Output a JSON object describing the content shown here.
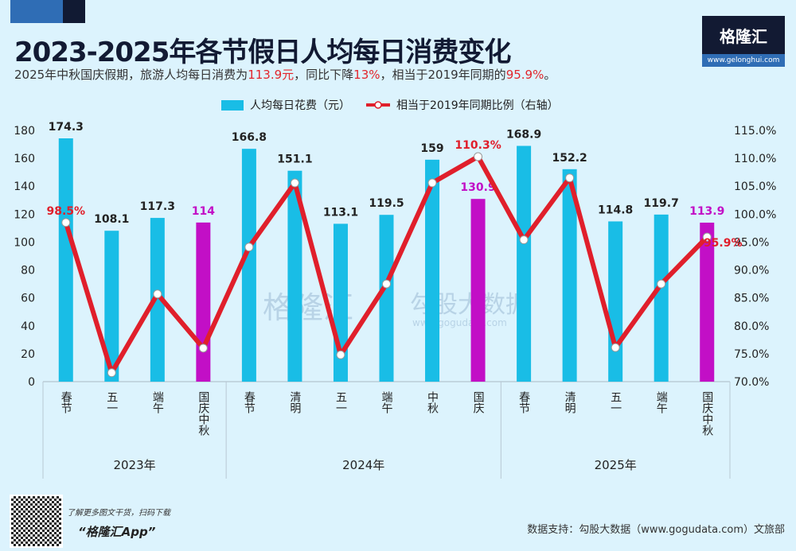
{
  "title": "2023-2025年各节假日人均每日消费变化",
  "subtitle": {
    "p1": "2025年中秋国庆假期，旅游人均每日消费为",
    "v1": "113.9元",
    "p2": "，同比下降",
    "v2": "13%",
    "p3": "，相当于2019年同期的",
    "v3": "95.9%",
    "p4": "。"
  },
  "logo": {
    "name": "格隆汇",
    "url": "www.gelonghui.com"
  },
  "watermark": {
    "a": "格隆汇",
    "b": "勾股大数据",
    "c": "www.gogudata.com"
  },
  "footer": {
    "promo": "了解更多图文干货，扫码下载",
    "app": "“格隆汇App”",
    "source": "数据支持：勾股大数据（www.gogudata.com）文旅部"
  },
  "colors": {
    "bar": "#19bde6",
    "highlight": "#c20fc6",
    "line": "#e01f2b"
  },
  "chart_data": {
    "type": "bar+line",
    "legend": [
      "人均每日花费（元）",
      "相当于2019年同期比例（右轴）"
    ],
    "legend_position": "top-center",
    "groups": [
      {
        "name": "2023年",
        "count": 4
      },
      {
        "name": "2024年",
        "count": 6
      },
      {
        "name": "2025年",
        "count": 5
      }
    ],
    "categories": [
      "春节",
      "五一",
      "端午",
      "国庆中秋",
      "春节",
      "清明",
      "五一",
      "端午",
      "中秋",
      "国庆",
      "春节",
      "清明",
      "五一",
      "端午",
      "国庆中秋"
    ],
    "series": [
      {
        "name": "人均每日花费（元）",
        "axis": "left",
        "values": [
          174.3,
          108.1,
          117.3,
          114,
          166.8,
          151.1,
          113.1,
          119.5,
          159,
          130.9,
          168.9,
          152.2,
          114.8,
          119.7,
          113.9
        ],
        "highlight": [
          3,
          9,
          14
        ]
      },
      {
        "name": "相当于2019年同期比例（右轴）",
        "axis": "right",
        "values": [
          98.5,
          71.6,
          85.7,
          76.0,
          94.1,
          105.6,
          74.8,
          87.5,
          105.6,
          110.3,
          95.4,
          106.5,
          76.1,
          87.5,
          95.9
        ],
        "labeled": [
          0,
          9,
          14
        ]
      }
    ],
    "yleft": {
      "range": [
        0,
        180
      ],
      "ticks": [
        "0",
        "20",
        "40",
        "60",
        "80",
        "100",
        "120",
        "140",
        "160",
        "180"
      ]
    },
    "yright": {
      "range": [
        70,
        115
      ],
      "ticks": [
        "70.0%",
        "75.0%",
        "80.0%",
        "85.0%",
        "90.0%",
        "95.0%",
        "100.0%",
        "105.0%",
        "110.0%",
        "115.0%"
      ]
    }
  }
}
